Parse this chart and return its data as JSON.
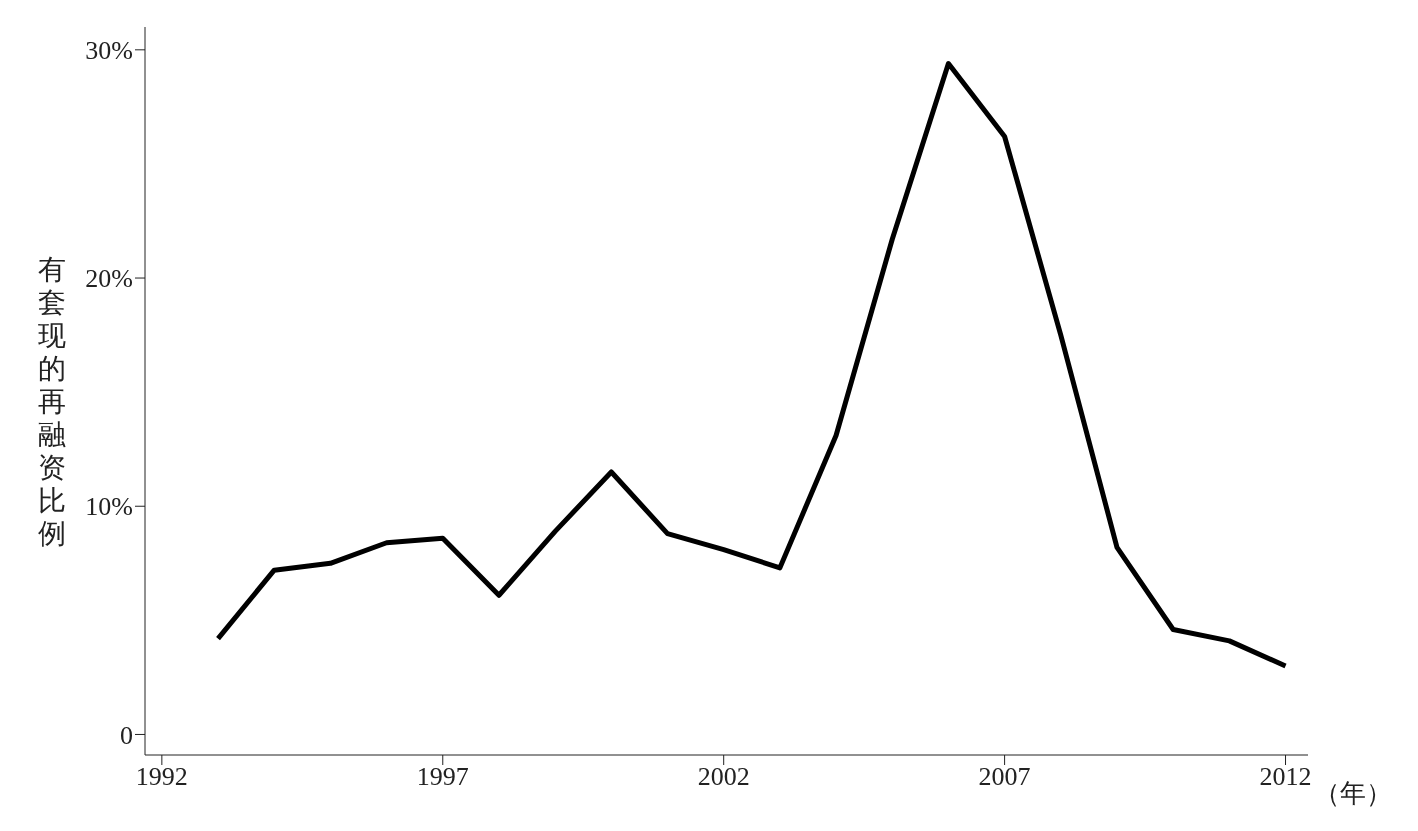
{
  "chart_data": {
    "type": "line",
    "xlabel": "（年）",
    "ylabel": "有套现的再融资比例",
    "x": [
      1993,
      1994,
      1995,
      1996,
      1997,
      1998,
      1999,
      2000,
      2001,
      2002,
      2003,
      2004,
      2005,
      2006,
      2007,
      2008,
      2009,
      2010,
      2011,
      2012
    ],
    "series": [
      {
        "color": "#000000",
        "values": [
          4.2,
          7.2,
          7.5,
          8.4,
          8.6,
          6.1,
          8.9,
          11.5,
          8.8,
          8.1,
          7.3,
          13.1,
          21.7,
          29.4,
          26.2,
          17.5,
          8.2,
          4.6,
          4.1,
          3.0
        ]
      }
    ],
    "xlim": [
      1991.7,
      2012.4
    ],
    "xticks": [
      1992,
      1997,
      2002,
      2007,
      2012
    ],
    "ylim": [
      -0.9,
      31
    ],
    "yticks": [
      {
        "value": 0,
        "label": "0"
      },
      {
        "value": 10,
        "label": "10%"
      },
      {
        "value": 20,
        "label": "20%"
      },
      {
        "value": 30,
        "label": "30%"
      }
    ],
    "grid": false,
    "marker": "none",
    "line_style": "solid"
  }
}
